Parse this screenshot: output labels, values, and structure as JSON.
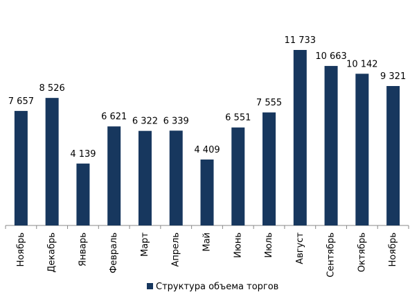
{
  "chart_data": {
    "type": "bar",
    "categories": [
      "Ноябрь",
      "Декабрь",
      "Январь",
      "Февраль",
      "Март",
      "Апрель",
      "Май",
      "Июнь",
      "Июль",
      "Август",
      "Сентябрь",
      "Октябрь",
      "Ноябрь"
    ],
    "series": [
      {
        "name": "Структура объема торгов",
        "color": "#17375e",
        "values": [
          7657,
          8526,
          4139,
          6621,
          6322,
          6339,
          4409,
          6551,
          7555,
          11733,
          10663,
          10142,
          9321
        ],
        "value_labels": [
          "7 657",
          "8 526",
          "4 139",
          "6 621",
          "6 322",
          "6 339",
          "4 409",
          "6 551",
          "7 555",
          "11 733",
          "10 663",
          "10 142",
          "9 321"
        ]
      }
    ]
  }
}
